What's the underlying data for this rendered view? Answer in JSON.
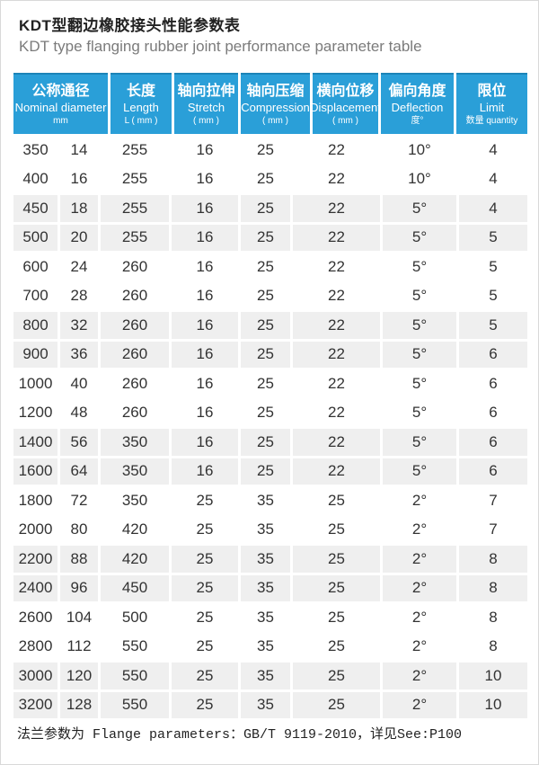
{
  "page": {
    "title_zh": "KDT型翻边橡胶接头性能参数表",
    "title_en": "KDT type flanging rubber joint performance parameter table",
    "footer": "法兰参数为 Flange parameters：GB/T 9119-2010，详见See:P100"
  },
  "colors": {
    "header_blue": "#2a9fd8",
    "header_blue_dark": "#1c84b8",
    "row_gray": "#efefef",
    "title_text": "#222222",
    "subtitle_gray": "#7b7b7b",
    "body_text": "#333333"
  },
  "table": {
    "columns": [
      {
        "zh": "公称通径",
        "en": "Nominal diameter",
        "sub": "mm"
      },
      {
        "zh": "长度",
        "en": "Length",
        "sub": "L ( mm )"
      },
      {
        "zh": "轴向拉伸",
        "en": "Stretch",
        "sub": "( mm )"
      },
      {
        "zh": "轴向压缩",
        "en": "Compression",
        "sub": "( mm )"
      },
      {
        "zh": "横向位移",
        "en": "Displacement",
        "sub": "( mm )"
      },
      {
        "zh": "偏向角度",
        "en": "Deflection",
        "sub": "度°"
      },
      {
        "zh": "限位",
        "en": "Limit",
        "sub": "数量 quantity"
      }
    ],
    "rows": [
      [
        "350",
        "14",
        "255",
        "16",
        "25",
        "22",
        "10°",
        "4"
      ],
      [
        "400",
        "16",
        "255",
        "16",
        "25",
        "22",
        "10°",
        "4"
      ],
      [
        "450",
        "18",
        "255",
        "16",
        "25",
        "22",
        "5°",
        "4"
      ],
      [
        "500",
        "20",
        "255",
        "16",
        "25",
        "22",
        "5°",
        "5"
      ],
      [
        "600",
        "24",
        "260",
        "16",
        "25",
        "22",
        "5°",
        "5"
      ],
      [
        "700",
        "28",
        "260",
        "16",
        "25",
        "22",
        "5°",
        "5"
      ],
      [
        "800",
        "32",
        "260",
        "16",
        "25",
        "22",
        "5°",
        "5"
      ],
      [
        "900",
        "36",
        "260",
        "16",
        "25",
        "22",
        "5°",
        "6"
      ],
      [
        "1000",
        "40",
        "260",
        "16",
        "25",
        "22",
        "5°",
        "6"
      ],
      [
        "1200",
        "48",
        "260",
        "16",
        "25",
        "22",
        "5°",
        "6"
      ],
      [
        "1400",
        "56",
        "350",
        "16",
        "25",
        "22",
        "5°",
        "6"
      ],
      [
        "1600",
        "64",
        "350",
        "16",
        "25",
        "22",
        "5°",
        "6"
      ],
      [
        "1800",
        "72",
        "350",
        "25",
        "35",
        "25",
        "2°",
        "7"
      ],
      [
        "2000",
        "80",
        "420",
        "25",
        "35",
        "25",
        "2°",
        "7"
      ],
      [
        "2200",
        "88",
        "420",
        "25",
        "35",
        "25",
        "2°",
        "8"
      ],
      [
        "2400",
        "96",
        "450",
        "25",
        "35",
        "25",
        "2°",
        "8"
      ],
      [
        "2600",
        "104",
        "500",
        "25",
        "35",
        "25",
        "2°",
        "8"
      ],
      [
        "2800",
        "112",
        "550",
        "25",
        "35",
        "25",
        "2°",
        "8"
      ],
      [
        "3000",
        "120",
        "550",
        "25",
        "35",
        "25",
        "2°",
        "10"
      ],
      [
        "3200",
        "128",
        "550",
        "25",
        "35",
        "25",
        "2°",
        "10"
      ]
    ]
  }
}
